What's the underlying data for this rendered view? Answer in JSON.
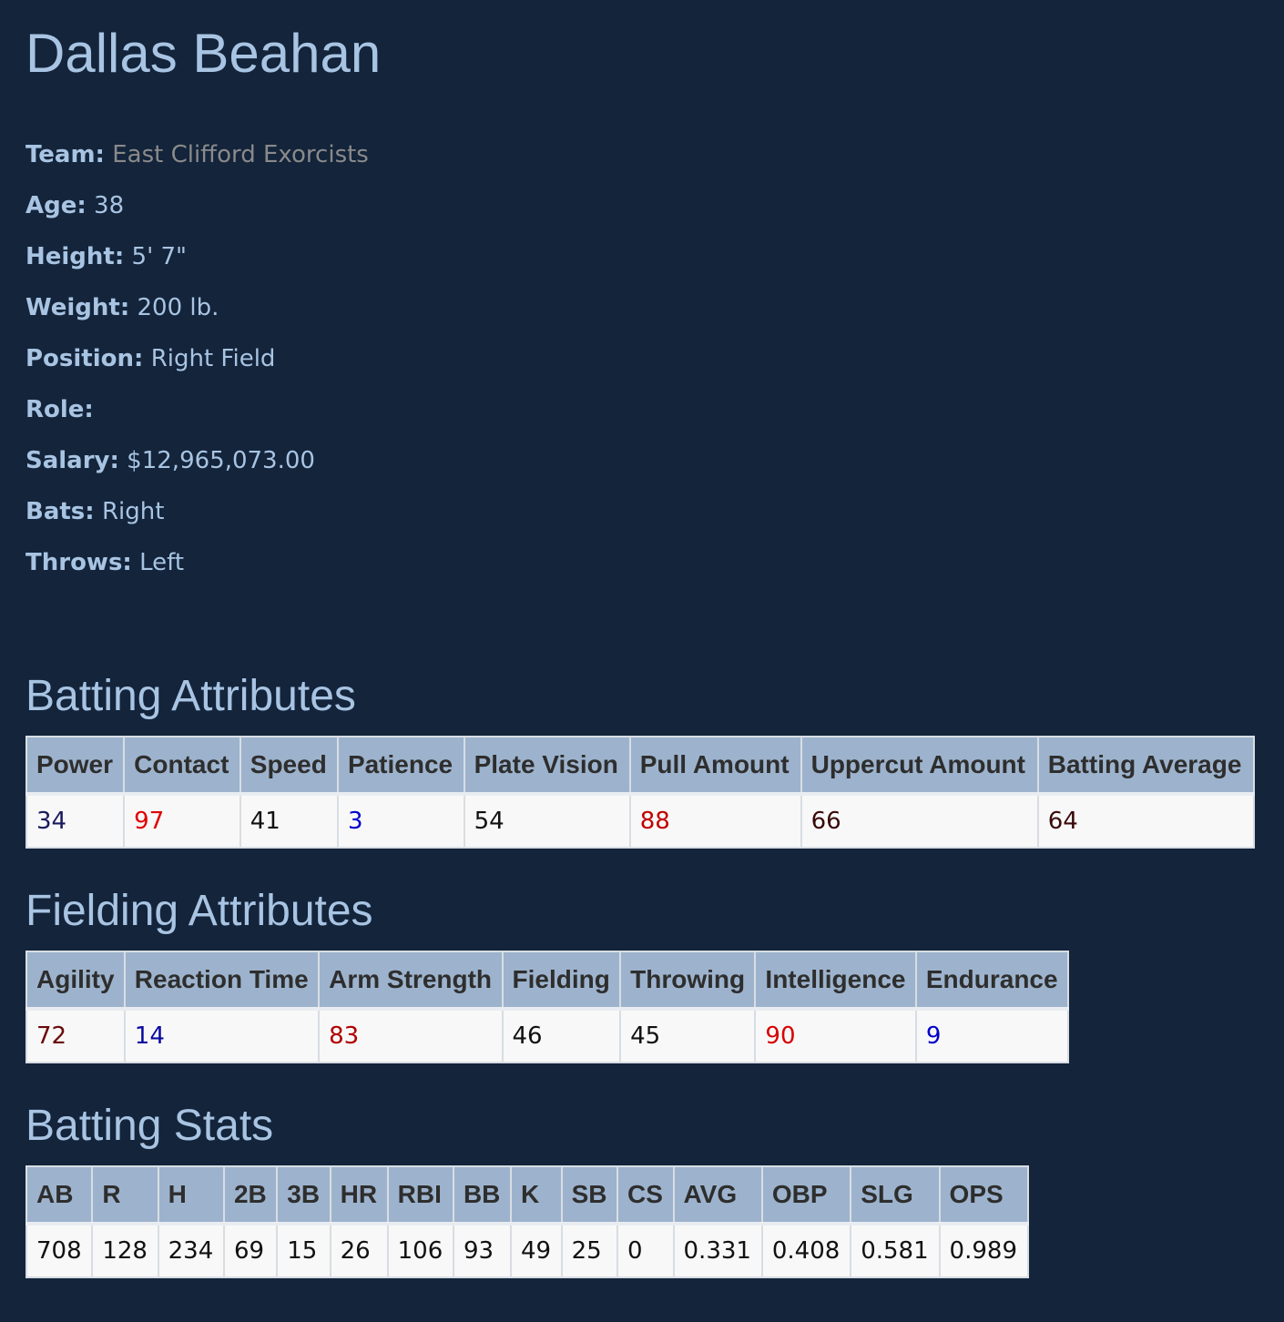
{
  "player": {
    "name": "Dallas Beahan"
  },
  "info": [
    {
      "label": "Team:",
      "value": "East Clifford Exorcists"
    },
    {
      "label": "Age:",
      "value": "38"
    },
    {
      "label": "Height:",
      "value": "5' 7\""
    },
    {
      "label": "Weight:",
      "value": "200 lb."
    },
    {
      "label": "Position:",
      "value": "Right Field"
    },
    {
      "label": "Role:",
      "value": ""
    },
    {
      "label": "Salary:",
      "value": "$12,965,073.00"
    },
    {
      "label": "Bats:",
      "value": "Right"
    },
    {
      "label": "Throws:",
      "value": "Left"
    }
  ],
  "batting_attributes": {
    "title": "Batting Attributes",
    "headers": [
      "Power",
      "Contact",
      "Speed",
      "Patience",
      "Plate Vision",
      "Pull Amount",
      "Uppercut Amount",
      "Batting Average"
    ],
    "values": [
      "34",
      "97",
      "41",
      "3",
      "54",
      "88",
      "66",
      "64"
    ],
    "colors": [
      "#1a1a5e",
      "#e00000",
      "#111111",
      "#0000cc",
      "#111111",
      "#c00000",
      "#3a0a0a",
      "#3a0a0a"
    ]
  },
  "fielding_attributes": {
    "title": "Fielding Attributes",
    "headers": [
      "Agility",
      "Reaction Time",
      "Arm Strength",
      "Fielding",
      "Throwing",
      "Intelligence",
      "Endurance"
    ],
    "values": [
      "72",
      "14",
      "83",
      "46",
      "45",
      "90",
      "9"
    ],
    "colors": [
      "#6a0a0a",
      "#0a0aa0",
      "#b00000",
      "#111111",
      "#111111",
      "#d80000",
      "#0000cc"
    ]
  },
  "batting_stats": {
    "title": "Batting Stats",
    "headers": [
      "AB",
      "R",
      "H",
      "2B",
      "3B",
      "HR",
      "RBI",
      "BB",
      "K",
      "SB",
      "CS",
      "AVG",
      "OBP",
      "SLG",
      "OPS"
    ],
    "values": [
      "708",
      "128",
      "234",
      "69",
      "15",
      "26",
      "106",
      "93",
      "49",
      "25",
      "0",
      "0.331",
      "0.408",
      "0.581",
      "0.989"
    ]
  }
}
